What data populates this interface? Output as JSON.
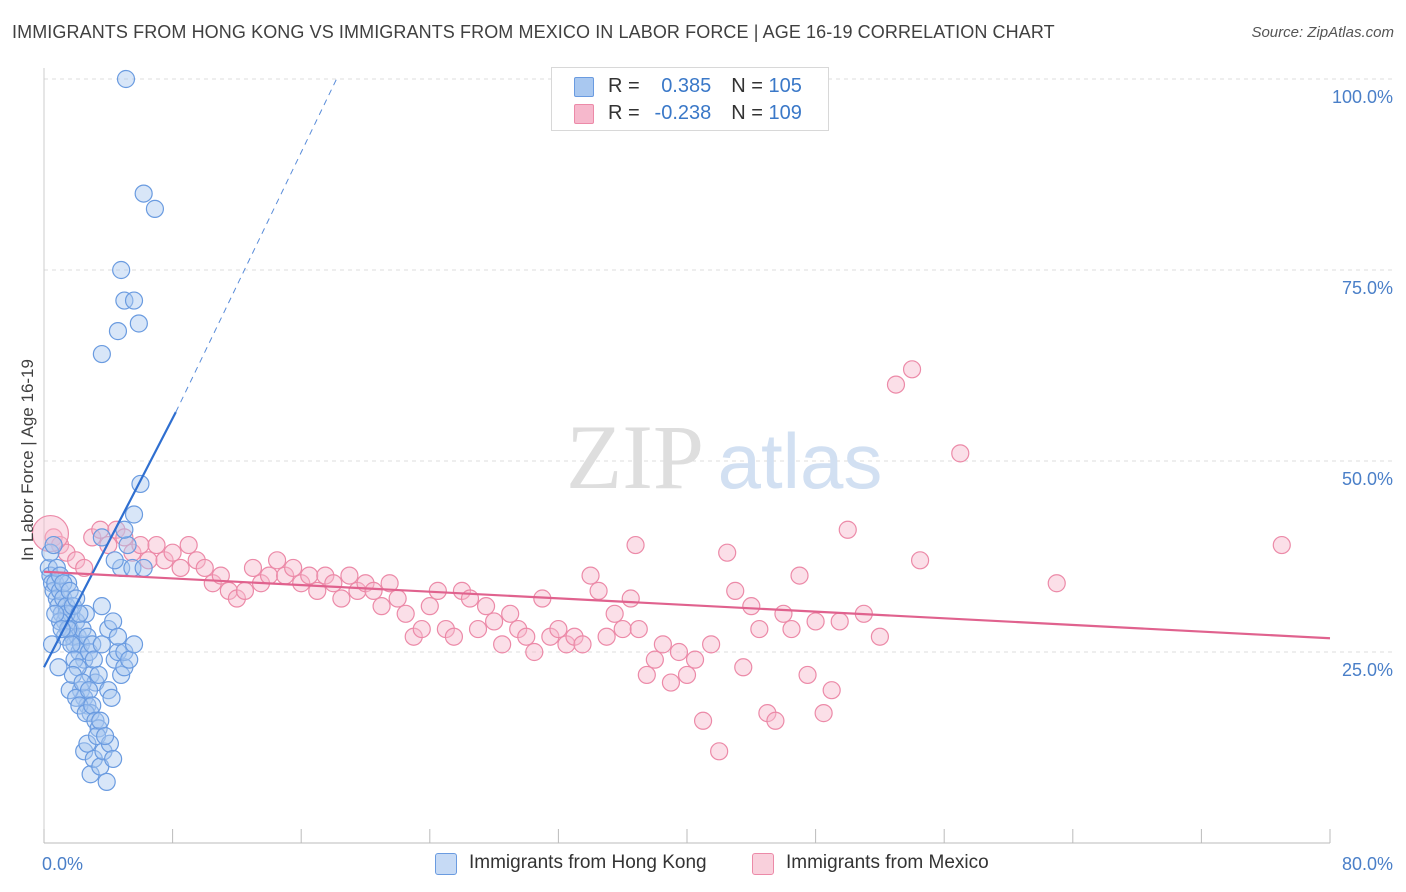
{
  "title": "IMMIGRANTS FROM HONG KONG VS IMMIGRANTS FROM MEXICO IN LABOR FORCE | AGE 16-19 CORRELATION CHART",
  "source": "Source: ZipAtlas.com",
  "watermark": {
    "zip": "ZIP",
    "atlas": "atlas"
  },
  "legend": {
    "rows": [
      {
        "r_label": "R = ",
        "r_value": "0.385",
        "n_label": "N = ",
        "n_value": "105"
      },
      {
        "r_label": "R = ",
        "r_value": "-0.238",
        "n_label": "N = ",
        "n_value": "109"
      }
    ]
  },
  "bottom_legend": [
    "Immigrants from Hong Kong",
    "Immigrants from Mexico"
  ],
  "colors": {
    "hk_fill": "#a9c8f0",
    "hk_stroke": "#6a9be0",
    "hk_line": "#2f6fd0",
    "mx_fill": "#f6b8cc",
    "mx_stroke": "#ec8aa8",
    "mx_line": "#e0628e",
    "axis_text": "#4a7fc8",
    "grid": "#dcdcdc"
  },
  "chart_data": {
    "type": "scatter",
    "title": "IMMIGRANTS FROM HONG KONG VS IMMIGRANTS FROM MEXICO IN LABOR FORCE | AGE 16-19 CORRELATION CHART",
    "xlabel": "",
    "ylabel": "In Labor Force | Age 16-19",
    "xlim": [
      0,
      80
    ],
    "ylim": [
      0,
      100
    ],
    "x_tick_labels": [
      "0.0%",
      "80.0%"
    ],
    "y_ticks": [
      25,
      50,
      75,
      100
    ],
    "y_tick_labels": [
      "25.0%",
      "50.0%",
      "75.0%",
      "100.0%"
    ],
    "grid": true,
    "legend_position": "top-center",
    "series": [
      {
        "name": "Immigrants from Hong Kong",
        "r": 0.385,
        "n": 105,
        "trend": {
          "x1": 0.0,
          "y1": 23.0,
          "x2": 8.2,
          "y2": 56.4,
          "dashed_to_x": 18.2,
          "dashed_to_y": 100
        },
        "points": [
          [
            0.3,
            36
          ],
          [
            0.4,
            35
          ],
          [
            0.5,
            34
          ],
          [
            0.6,
            33
          ],
          [
            0.7,
            34
          ],
          [
            0.8,
            32
          ],
          [
            0.9,
            31
          ],
          [
            1.0,
            33
          ],
          [
            1.1,
            30
          ],
          [
            1.2,
            32
          ],
          [
            1.3,
            29
          ],
          [
            1.4,
            31
          ],
          [
            1.5,
            34
          ],
          [
            1.6,
            28
          ],
          [
            1.7,
            30
          ],
          [
            1.8,
            27
          ],
          [
            1.9,
            26
          ],
          [
            2.0,
            29
          ],
          [
            2.1,
            27
          ],
          [
            2.2,
            25
          ],
          [
            2.3,
            26
          ],
          [
            2.4,
            28
          ],
          [
            2.5,
            24
          ],
          [
            2.6,
            30
          ],
          [
            2.7,
            27
          ],
          [
            2.8,
            25
          ],
          [
            2.9,
            22
          ],
          [
            3.0,
            26
          ],
          [
            3.1,
            24
          ],
          [
            3.2,
            21
          ],
          [
            0.4,
            38
          ],
          [
            0.6,
            39
          ],
          [
            0.8,
            36
          ],
          [
            1.0,
            35
          ],
          [
            1.2,
            34
          ],
          [
            1.4,
            30
          ],
          [
            1.6,
            33
          ],
          [
            1.8,
            31
          ],
          [
            2.0,
            32
          ],
          [
            2.2,
            30
          ],
          [
            1.0,
            29
          ],
          [
            1.3,
            27
          ],
          [
            1.5,
            28
          ],
          [
            1.7,
            26
          ],
          [
            1.9,
            24
          ],
          [
            2.1,
            23
          ],
          [
            2.3,
            20
          ],
          [
            2.5,
            19
          ],
          [
            2.7,
            18
          ],
          [
            2.9,
            17
          ],
          [
            1.6,
            20
          ],
          [
            1.8,
            22
          ],
          [
            2.0,
            19
          ],
          [
            2.2,
            18
          ],
          [
            2.4,
            21
          ],
          [
            2.6,
            17
          ],
          [
            2.8,
            20
          ],
          [
            3.0,
            18
          ],
          [
            3.2,
            16
          ],
          [
            3.4,
            15
          ],
          [
            2.5,
            12
          ],
          [
            2.7,
            13
          ],
          [
            2.9,
            9
          ],
          [
            3.1,
            11
          ],
          [
            3.3,
            14
          ],
          [
            3.5,
            10
          ],
          [
            3.7,
            12
          ],
          [
            3.9,
            8
          ],
          [
            4.1,
            13
          ],
          [
            4.3,
            11
          ],
          [
            3.5,
            16
          ],
          [
            3.8,
            14
          ],
          [
            4.0,
            20
          ],
          [
            4.2,
            19
          ],
          [
            4.4,
            24
          ],
          [
            4.6,
            25
          ],
          [
            4.8,
            22
          ],
          [
            5.0,
            23
          ],
          [
            3.4,
            22
          ],
          [
            3.6,
            26
          ],
          [
            3.6,
            31
          ],
          [
            4.0,
            28
          ],
          [
            4.3,
            29
          ],
          [
            4.6,
            27
          ],
          [
            5.0,
            25
          ],
          [
            5.3,
            24
          ],
          [
            5.6,
            26
          ],
          [
            4.8,
            36
          ],
          [
            5.2,
            39
          ],
          [
            5.5,
            36
          ],
          [
            3.6,
            40
          ],
          [
            4.4,
            37
          ],
          [
            5.0,
            41
          ],
          [
            5.6,
            43
          ],
          [
            6.0,
            47
          ],
          [
            6.2,
            36
          ],
          [
            0.9,
            23
          ],
          [
            0.5,
            26
          ],
          [
            0.7,
            30
          ],
          [
            1.1,
            28
          ],
          [
            3.6,
            64
          ],
          [
            4.6,
            67
          ],
          [
            4.8,
            75
          ],
          [
            5.0,
            71
          ],
          [
            5.6,
            71
          ],
          [
            5.9,
            68
          ],
          [
            6.2,
            85
          ],
          [
            6.9,
            83
          ],
          [
            5.1,
            100
          ]
        ]
      },
      {
        "name": "Immigrants from Mexico",
        "r": -0.238,
        "n": 109,
        "trend": {
          "x1": 0.0,
          "y1": 35.5,
          "x2": 80.0,
          "y2": 26.8
        },
        "points": [
          [
            0.6,
            40
          ],
          [
            1.0,
            39
          ],
          [
            1.4,
            38
          ],
          [
            2.0,
            37
          ],
          [
            2.5,
            36
          ],
          [
            3.0,
            40
          ],
          [
            3.5,
            41
          ],
          [
            4.0,
            39
          ],
          [
            4.5,
            41
          ],
          [
            5.0,
            40
          ],
          [
            5.5,
            38
          ],
          [
            6.0,
            39
          ],
          [
            6.5,
            37
          ],
          [
            7.0,
            39
          ],
          [
            7.5,
            37
          ],
          [
            8.0,
            38
          ],
          [
            8.5,
            36
          ],
          [
            9.0,
            39
          ],
          [
            9.5,
            37
          ],
          [
            10.0,
            36
          ],
          [
            10.5,
            34
          ],
          [
            11.0,
            35
          ],
          [
            11.5,
            33
          ],
          [
            12.0,
            32
          ],
          [
            12.5,
            33
          ],
          [
            13.0,
            36
          ],
          [
            13.5,
            34
          ],
          [
            14.0,
            35
          ],
          [
            14.5,
            37
          ],
          [
            15.0,
            35
          ],
          [
            15.5,
            36
          ],
          [
            16.0,
            34
          ],
          [
            16.5,
            35
          ],
          [
            17.0,
            33
          ],
          [
            17.5,
            35
          ],
          [
            18.0,
            34
          ],
          [
            18.5,
            32
          ],
          [
            19.0,
            35
          ],
          [
            19.5,
            33
          ],
          [
            20.0,
            34
          ],
          [
            20.5,
            33
          ],
          [
            21.0,
            31
          ],
          [
            21.5,
            34
          ],
          [
            22.0,
            32
          ],
          [
            22.5,
            30
          ],
          [
            23.0,
            27
          ],
          [
            23.5,
            28
          ],
          [
            24.0,
            31
          ],
          [
            24.5,
            33
          ],
          [
            25.0,
            28
          ],
          [
            25.5,
            27
          ],
          [
            26.0,
            33
          ],
          [
            26.5,
            32
          ],
          [
            27.0,
            28
          ],
          [
            27.5,
            31
          ],
          [
            28.0,
            29
          ],
          [
            28.5,
            26
          ],
          [
            29.0,
            30
          ],
          [
            29.5,
            28
          ],
          [
            30.0,
            27
          ],
          [
            30.5,
            25
          ],
          [
            31.0,
            32
          ],
          [
            31.5,
            27
          ],
          [
            32.0,
            28
          ],
          [
            32.5,
            26
          ],
          [
            33.0,
            27
          ],
          [
            33.5,
            26
          ],
          [
            34.0,
            35
          ],
          [
            34.5,
            33
          ],
          [
            35.0,
            27
          ],
          [
            35.5,
            30
          ],
          [
            36.0,
            28
          ],
          [
            36.5,
            32
          ],
          [
            37.0,
            28
          ],
          [
            37.5,
            22
          ],
          [
            38.0,
            24
          ],
          [
            38.5,
            26
          ],
          [
            39.0,
            21
          ],
          [
            39.5,
            25
          ],
          [
            40.0,
            22
          ],
          [
            40.5,
            24
          ],
          [
            41.0,
            16
          ],
          [
            41.5,
            26
          ],
          [
            42.0,
            12
          ],
          [
            42.5,
            38
          ],
          [
            43.0,
            33
          ],
          [
            43.5,
            23
          ],
          [
            44.0,
            31
          ],
          [
            44.5,
            28
          ],
          [
            45.0,
            17
          ],
          [
            45.5,
            16
          ],
          [
            46.0,
            30
          ],
          [
            46.5,
            28
          ],
          [
            47.0,
            35
          ],
          [
            47.5,
            22
          ],
          [
            48.0,
            29
          ],
          [
            48.5,
            17
          ],
          [
            49.0,
            20
          ],
          [
            49.5,
            29
          ],
          [
            50.0,
            41
          ],
          [
            51.0,
            30
          ],
          [
            52.0,
            27
          ],
          [
            53.0,
            60
          ],
          [
            54.0,
            62
          ],
          [
            54.5,
            37
          ],
          [
            57.0,
            51
          ],
          [
            63.0,
            34
          ],
          [
            77.0,
            39
          ],
          [
            36.8,
            39
          ]
        ]
      }
    ]
  }
}
